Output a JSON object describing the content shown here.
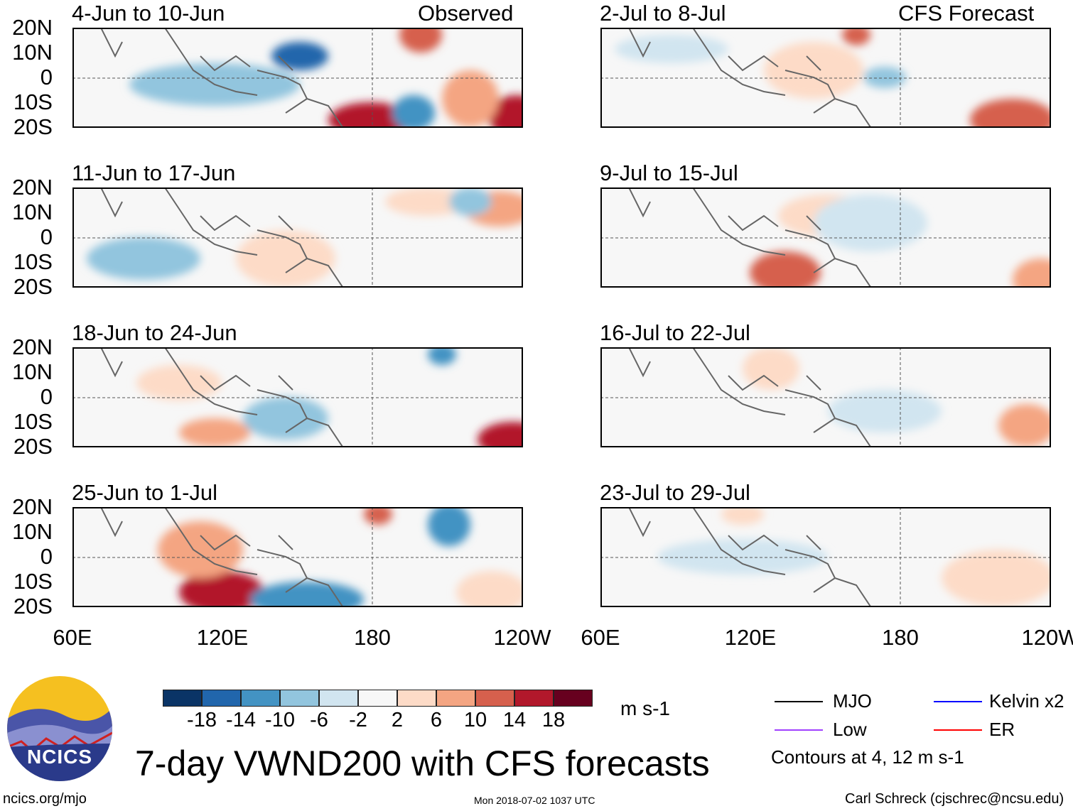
{
  "header": {
    "observed_label": "Observed",
    "forecast_label": "CFS Forecast"
  },
  "lat_labels": [
    "20N",
    "10N",
    "0",
    "10S",
    "20S"
  ],
  "lon_labels": [
    "60E",
    "120E",
    "180",
    "120W"
  ],
  "panels": [
    {
      "title": "4-Jun to 10-Jun",
      "column": "observed"
    },
    {
      "title": "11-Jun to 17-Jun",
      "column": "observed"
    },
    {
      "title": "18-Jun to 24-Jun",
      "column": "observed"
    },
    {
      "title": "25-Jun to 1-Jul",
      "column": "observed"
    },
    {
      "title": "2-Jul to 8-Jul",
      "column": "forecast"
    },
    {
      "title": "9-Jul to 15-Jul",
      "column": "forecast"
    },
    {
      "title": "16-Jul to 22-Jul",
      "column": "forecast"
    },
    {
      "title": "23-Jul to 29-Jul",
      "column": "forecast"
    }
  ],
  "colorbar": {
    "colors": [
      "#0a3466",
      "#2166ac",
      "#4393c3",
      "#92c5de",
      "#d1e5f0",
      "#f7f7f7",
      "#fddbc7",
      "#f4a582",
      "#d6604d",
      "#b2182b",
      "#67001f"
    ],
    "labels": [
      "-18",
      "-14",
      "-10",
      "-6",
      "-2",
      "2",
      "6",
      "10",
      "14",
      "18"
    ],
    "units": "m s-1"
  },
  "legend": {
    "items": [
      {
        "label": "MJO",
        "color": "#000000"
      },
      {
        "label": "Kelvin x2",
        "color": "#0000ff"
      },
      {
        "label": "Low",
        "color": "#a040ff"
      },
      {
        "label": "ER",
        "color": "#ff0000"
      }
    ],
    "contours_note": "Contours at 4, 12 m s-1"
  },
  "logo": {
    "text": "NCICS"
  },
  "title": "7-day VWND200 with CFS forecasts",
  "footer": {
    "url": "ncics.org/mjo",
    "timestamp": "Mon 2018-07-02 1037 UTC",
    "credit": "Carl Schreck (cjschrec@ncsu.edu)"
  }
}
